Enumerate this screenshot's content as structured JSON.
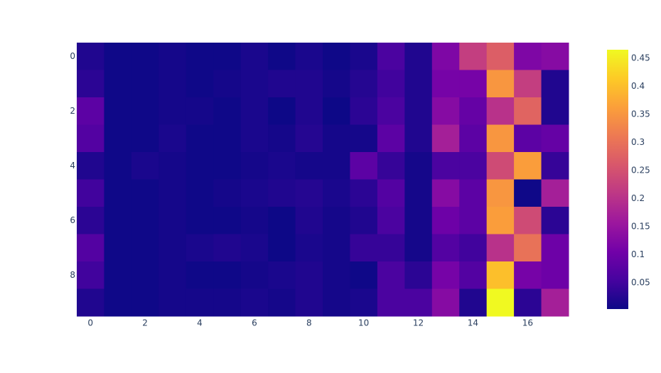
{
  "chart_data": {
    "type": "heatmap",
    "colorscale": "plasma",
    "x": [
      0,
      1,
      2,
      3,
      4,
      5,
      6,
      7,
      8,
      9,
      10,
      11,
      12,
      13,
      14,
      15,
      16,
      17
    ],
    "y": [
      0,
      1,
      2,
      3,
      4,
      5,
      6,
      7,
      8,
      9
    ],
    "z": [
      [
        0.02,
        0.005,
        0.005,
        0.01,
        0.005,
        0.005,
        0.015,
        0.005,
        0.015,
        0.005,
        0.015,
        0.06,
        0.02,
        0.12,
        0.22,
        0.27,
        0.12,
        0.13
      ],
      [
        0.03,
        0.005,
        0.005,
        0.01,
        0.005,
        0.01,
        0.015,
        0.02,
        0.02,
        0.01,
        0.025,
        0.05,
        0.02,
        0.11,
        0.11,
        0.35,
        0.22,
        0.02
      ],
      [
        0.08,
        0.005,
        0.005,
        0.01,
        0.01,
        0.005,
        0.015,
        0.003,
        0.02,
        0.003,
        0.03,
        0.06,
        0.02,
        0.13,
        0.09,
        0.2,
        0.28,
        0.02
      ],
      [
        0.07,
        0.005,
        0.005,
        0.015,
        0.005,
        0.005,
        0.015,
        0.01,
        0.025,
        0.01,
        0.01,
        0.08,
        0.02,
        0.17,
        0.08,
        0.35,
        0.08,
        0.09
      ],
      [
        0.02,
        0.005,
        0.015,
        0.01,
        0.005,
        0.005,
        0.01,
        0.015,
        0.01,
        0.01,
        0.08,
        0.04,
        0.01,
        0.06,
        0.06,
        0.24,
        0.36,
        0.04
      ],
      [
        0.05,
        0.005,
        0.005,
        0.01,
        0.005,
        0.01,
        0.015,
        0.02,
        0.025,
        0.015,
        0.03,
        0.07,
        0.01,
        0.13,
        0.08,
        0.35,
        0.005,
        0.17
      ],
      [
        0.03,
        0.005,
        0.005,
        0.01,
        0.005,
        0.005,
        0.01,
        0.003,
        0.02,
        0.01,
        0.02,
        0.06,
        0.01,
        0.1,
        0.08,
        0.36,
        0.24,
        0.03
      ],
      [
        0.07,
        0.005,
        0.005,
        0.01,
        0.015,
        0.02,
        0.015,
        0.003,
        0.015,
        0.01,
        0.04,
        0.04,
        0.01,
        0.07,
        0.05,
        0.2,
        0.3,
        0.1
      ],
      [
        0.05,
        0.005,
        0.005,
        0.01,
        0.005,
        0.005,
        0.01,
        0.015,
        0.02,
        0.01,
        0.005,
        0.06,
        0.03,
        0.11,
        0.07,
        0.4,
        0.11,
        0.1
      ],
      [
        0.02,
        0.005,
        0.005,
        0.01,
        0.01,
        0.01,
        0.015,
        0.01,
        0.02,
        0.01,
        0.015,
        0.06,
        0.06,
        0.13,
        0.02,
        0.465,
        0.03,
        0.17
      ]
    ],
    "xlim": [
      -0.5,
      17.5
    ],
    "ylim": [
      9.5,
      -0.5
    ],
    "xticks": [
      0,
      2,
      4,
      6,
      8,
      10,
      12,
      14,
      16
    ],
    "yticks": [
      0,
      2,
      4,
      6,
      8
    ],
    "zlim": [
      0.003,
      0.465
    ],
    "zticks": [
      0.05,
      0.1,
      0.15,
      0.2,
      0.25,
      0.3,
      0.35,
      0.4,
      0.45
    ]
  }
}
